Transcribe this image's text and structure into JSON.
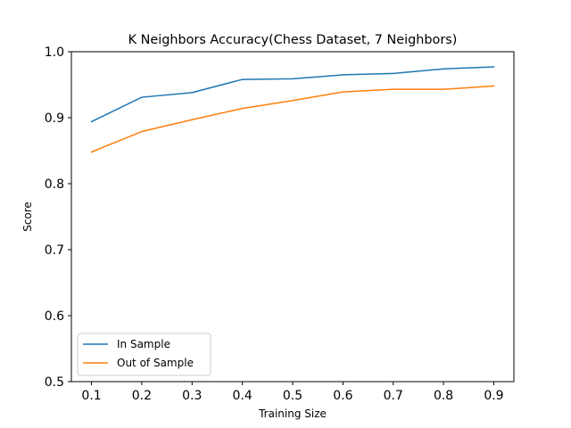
{
  "chart_data": {
    "type": "line",
    "title": "K Neighbors Accuracy(Chess Dataset, 7 Neighbors)",
    "xlabel": "Training Size",
    "ylabel": "Score",
    "x": [
      0.1,
      0.2,
      0.3,
      0.4,
      0.5,
      0.6,
      0.7,
      0.8,
      0.9
    ],
    "xticks": [
      "0.1",
      "0.2",
      "0.3",
      "0.4",
      "0.5",
      "0.6",
      "0.7",
      "0.8",
      "0.9"
    ],
    "yticks": [
      "0.5",
      "0.6",
      "0.7",
      "0.8",
      "0.9",
      "1.0"
    ],
    "xlim": [
      0.06,
      0.94
    ],
    "ylim": [
      0.5,
      1.0
    ],
    "grid": false,
    "legend_position": "lower-left",
    "series": [
      {
        "name": "In Sample",
        "color": "#1f77b4",
        "values": [
          0.894,
          0.931,
          0.938,
          0.958,
          0.959,
          0.965,
          0.967,
          0.974,
          0.977
        ]
      },
      {
        "name": "Out of Sample",
        "color": "#ff7f0e",
        "values": [
          0.848,
          0.879,
          0.897,
          0.914,
          0.926,
          0.939,
          0.943,
          0.943,
          0.948
        ]
      }
    ]
  }
}
